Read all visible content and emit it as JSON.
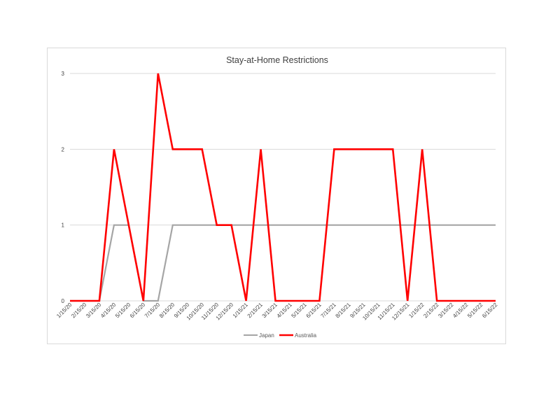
{
  "chart_data": {
    "type": "line",
    "title": "Stay-at-Home Restrictions",
    "xlabel": "",
    "ylabel": "",
    "ylim": [
      0,
      3
    ],
    "yticks": [
      "0",
      "1",
      "2",
      "3"
    ],
    "grid": "horizontal",
    "legend_position": "bottom",
    "x": [
      "1/15/20",
      "2/15/20",
      "3/15/20",
      "4/15/20",
      "5/15/20",
      "6/15/20",
      "7/15/20",
      "8/15/20",
      "9/15/20",
      "10/15/20",
      "11/15/20",
      "12/15/20",
      "1/15/21",
      "2/15/21",
      "3/15/21",
      "4/15/21",
      "5/15/21",
      "6/15/21",
      "7/15/21",
      "8/15/21",
      "9/15/21",
      "10/15/21",
      "11/15/21",
      "12/15/21",
      "1/15/22",
      "2/15/22",
      "3/15/22",
      "4/15/22",
      "5/15/22",
      "6/15/22"
    ],
    "series": [
      {
        "name": "Japan",
        "color": "#a5a5a5",
        "values": [
          0,
          0,
          0,
          1,
          1,
          0,
          0,
          1,
          1,
          1,
          1,
          1,
          1,
          1,
          1,
          1,
          1,
          1,
          1,
          1,
          1,
          1,
          1,
          1,
          1,
          1,
          1,
          1,
          1,
          1
        ]
      },
      {
        "name": "Australia",
        "color": "#ff0000",
        "values": [
          0,
          0,
          0,
          2,
          1,
          0,
          3,
          2,
          2,
          2,
          1,
          1,
          0,
          2,
          0,
          0,
          0,
          0,
          2,
          2,
          2,
          2,
          2,
          0,
          2,
          0,
          0,
          0,
          0,
          0
        ]
      }
    ]
  }
}
